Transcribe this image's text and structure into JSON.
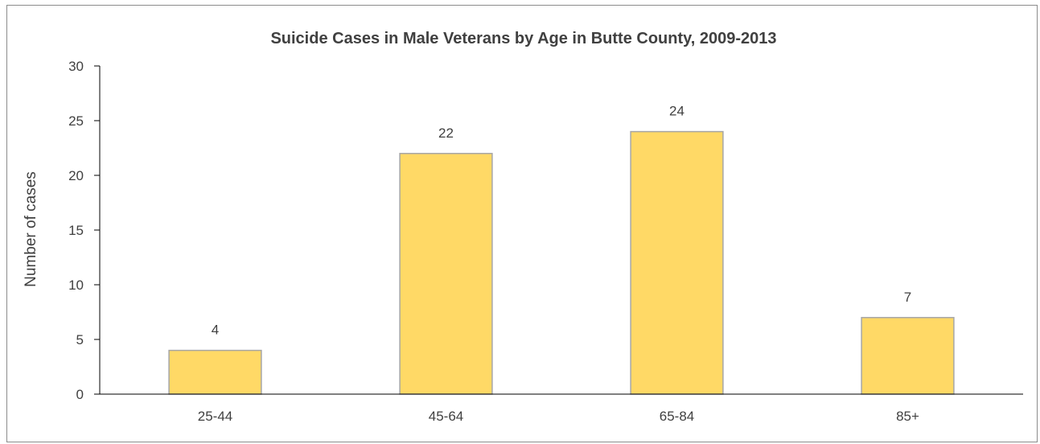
{
  "chart_data": {
    "type": "bar",
    "title": "Suicide Cases in Male Veterans by Age in Butte County, 2009-2013",
    "xlabel": "",
    "ylabel": "Number of cases",
    "categories": [
      "25-44",
      "45-64",
      "65-84",
      "85+"
    ],
    "values": [
      4,
      22,
      24,
      7
    ],
    "data_labels": [
      "4",
      "22",
      "24",
      "7"
    ],
    "yticks": [
      0,
      5,
      10,
      15,
      20,
      25,
      30
    ],
    "ylim": [
      0,
      30
    ],
    "grid": false,
    "legend": "none",
    "colors": {
      "bar_fill": "#FFD966",
      "bar_stroke": "#A6A6A6",
      "axis": "#000000",
      "text": "#404040"
    }
  }
}
